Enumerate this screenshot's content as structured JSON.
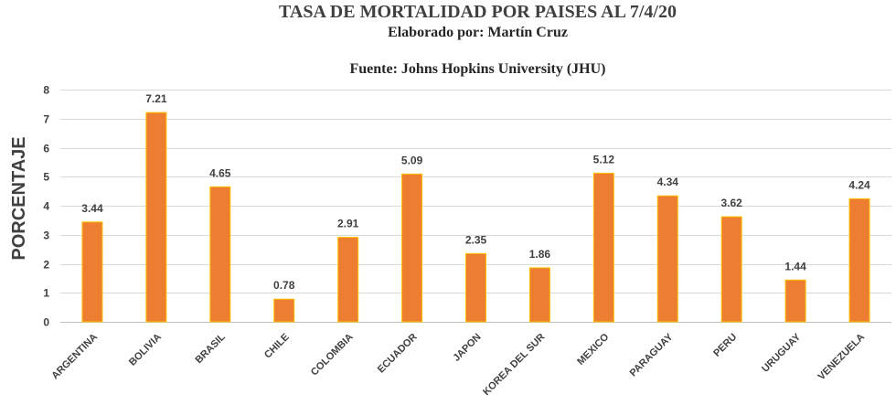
{
  "chart_data": {
    "type": "bar",
    "title": "TASA DE MORTALIDAD POR PAISES AL 7/4/20",
    "subtitle": "Elaborado por: Martín Cruz",
    "source": "Fuente: Johns Hopkins University (JHU)",
    "ylabel": "PORCENTAJE",
    "xlabel": "",
    "ylim": [
      0,
      8
    ],
    "yticks": [
      "0",
      "1",
      "2",
      "3",
      "4",
      "5",
      "6",
      "7",
      "8"
    ],
    "grid": true,
    "categories": [
      "ARGENTINA",
      "BOLIVIA",
      "BRASIL",
      "CHILE",
      "COLOMBIA",
      "ECUADOR",
      "JAPON",
      "KOREA DEL SUR",
      "MEXICO",
      "PARAGUAY",
      "PERU",
      "URUGUAY",
      "VENEZUELA"
    ],
    "values": [
      3.44,
      7.21,
      4.65,
      0.78,
      2.91,
      5.09,
      2.35,
      1.86,
      5.12,
      4.34,
      3.62,
      1.44,
      4.24
    ],
    "value_labels": [
      "3.44",
      "7.21",
      "4.65",
      "0.78",
      "2.91",
      "5.09",
      "2.35",
      "1.86",
      "5.12",
      "4.34",
      "3.62",
      "1.44",
      "4.24"
    ],
    "bar_color": "#ED7D31",
    "bar_edge_color": "#FFC000"
  }
}
